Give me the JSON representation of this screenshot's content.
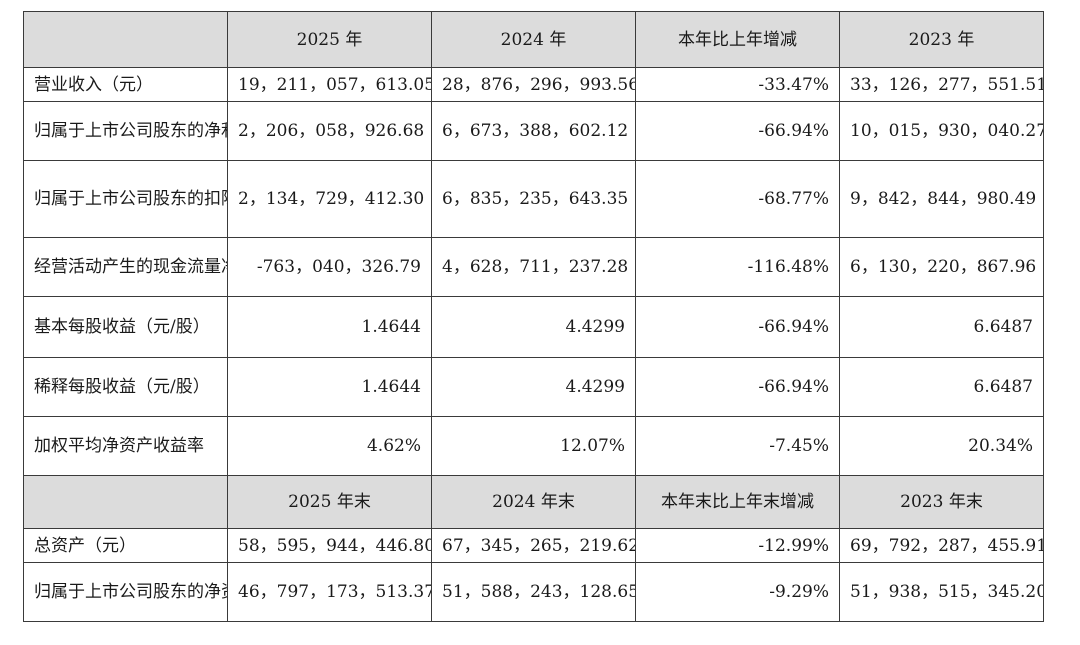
{
  "header1": {
    "col0": "",
    "col1": "2025 年",
    "col2": "2024 年",
    "col3": "本年比上年增减",
    "col4": "2023 年"
  },
  "rows1": [
    {
      "label": "营业收入（元）",
      "v2025": "19，211，057，613.05",
      "v2024": "28，876，296，993.56",
      "change": "-33.47%",
      "v2023": "33，126，277，551.51"
    },
    {
      "label": "归属于上市公司股东的净利润（元）",
      "v2025": "2，206，058，926.68",
      "v2024": "6，673，388，602.12",
      "change": "-66.94%",
      "v2023": "10，015，930，040.27"
    },
    {
      "label": "归属于上市公司股东的扣除非经常性损益的净利润（元）",
      "v2025": "2，134，729，412.30",
      "v2024": "6，835，235，643.35",
      "change": "-68.77%",
      "v2023": "9，842，844，980.49"
    },
    {
      "label": "经营活动产生的现金流量净额（元）",
      "v2025": "-763，040，326.79",
      "v2024": "4，628，711，237.28",
      "change": "-116.48%",
      "v2023": "6，130，220，867.96"
    },
    {
      "label": "基本每股收益（元/股）",
      "v2025": "1.4644",
      "v2024": "4.4299",
      "change": "-66.94%",
      "v2023": "6.6487"
    },
    {
      "label": "稀释每股收益（元/股）",
      "v2025": "1.4644",
      "v2024": "4.4299",
      "change": "-66.94%",
      "v2023": "6.6487"
    },
    {
      "label": "加权平均净资产收益率",
      "v2025": "4.62%",
      "v2024": "12.07%",
      "change": "-7.45%",
      "v2023": "20.34%"
    }
  ],
  "header2": {
    "col0": "",
    "col1": "2025 年末",
    "col2": "2024 年末",
    "col3": "本年末比上年末增减",
    "col4": "2023 年末"
  },
  "rows2": [
    {
      "label": "总资产（元）",
      "v2025": "58，595，944，446.80",
      "v2024": "67，345，265，219.62",
      "change": "-12.99%",
      "v2023": "69，792，287，455.91"
    },
    {
      "label": "归属于上市公司股东的净资产（元）",
      "v2025": "46，797，173，513.37",
      "v2024": "51，588，243，128.65",
      "change": "-9.29%",
      "v2023": "51，938，515，345.20"
    }
  ]
}
